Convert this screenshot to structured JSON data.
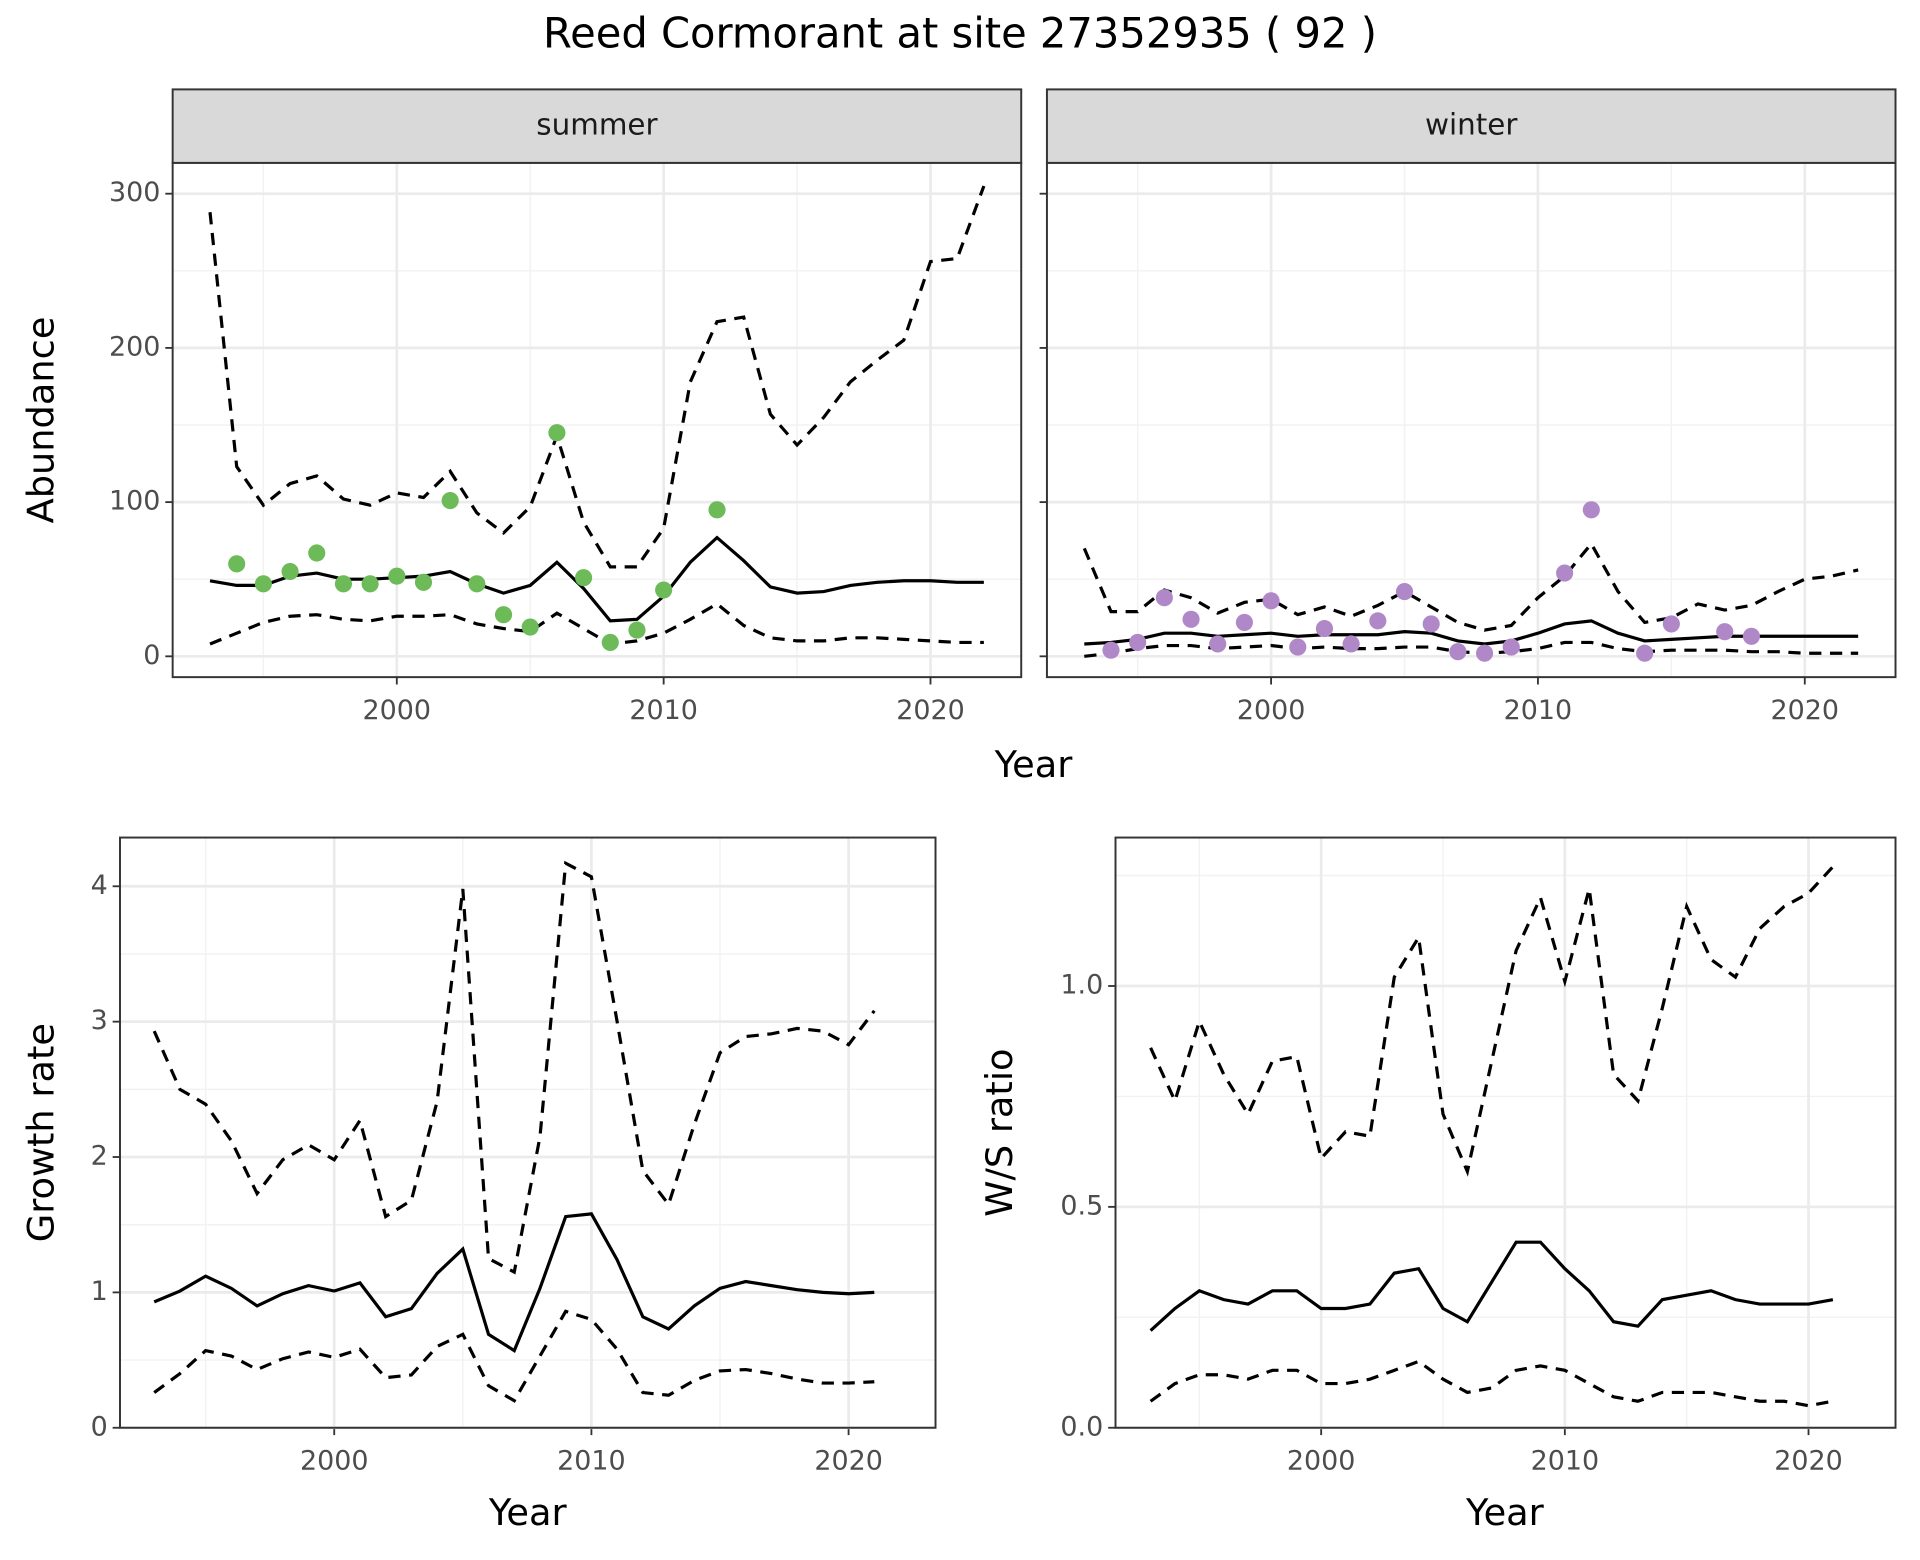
{
  "title": "Reed Cormorant at site 27352935 ( 92 )",
  "chart_data": [
    {
      "type": "line",
      "panel": "summer",
      "ylabel": "Abundance",
      "xlabel": "Year",
      "x": [
        1993,
        1994,
        1995,
        1996,
        1997,
        1998,
        1999,
        2000,
        2001,
        2002,
        2003,
        2004,
        2005,
        2006,
        2007,
        2008,
        2009,
        2010,
        2011,
        2012,
        2013,
        2014,
        2015,
        2016,
        2017,
        2018,
        2019,
        2020,
        2021,
        2022
      ],
      "series": [
        {
          "style": "dashed",
          "color": "#000000",
          "values": [
            288,
            123,
            98,
            112,
            117,
            102,
            98,
            106,
            103,
            120,
            93,
            80,
            97,
            143,
            87,
            58,
            58,
            83,
            178,
            217,
            220,
            157,
            137,
            155,
            178,
            192,
            205,
            256,
            258,
            305
          ]
        },
        {
          "style": "solid",
          "color": "#000000",
          "values": [
            49,
            46,
            46,
            52,
            54,
            50,
            50,
            51,
            52,
            55,
            47,
            41,
            46,
            61,
            44,
            23,
            24,
            39,
            61,
            77,
            62,
            45,
            41,
            42,
            46,
            48,
            49,
            49,
            48,
            48
          ]
        },
        {
          "style": "dashed",
          "color": "#000000",
          "values": [
            8,
            15,
            22,
            26,
            27,
            24,
            23,
            26,
            26,
            27,
            21,
            18,
            16,
            28,
            18,
            8,
            10,
            15,
            24,
            34,
            20,
            12,
            10,
            10,
            12,
            12,
            11,
            10,
            9,
            9
          ]
        },
        {
          "style": "points",
          "color": "#6cbb58",
          "x": [
            1994,
            1995,
            1996,
            1997,
            1998,
            1999,
            2000,
            2001,
            2002,
            2003,
            2004,
            2005,
            2006,
            2007,
            2008,
            2009,
            2010,
            2012
          ],
          "values": [
            60,
            47,
            55,
            67,
            47,
            47,
            52,
            48,
            101,
            47,
            27,
            19,
            145,
            51,
            9,
            17,
            43,
            95
          ]
        }
      ],
      "xlim": [
        1991.6,
        2023.4
      ],
      "xticks": [
        2000,
        2010,
        2020
      ],
      "xminor": [
        1995,
        2005,
        2015
      ],
      "ylim": [
        -13.5,
        320
      ],
      "yticks": [
        0,
        100,
        200,
        300
      ],
      "yminor": [
        50,
        150,
        250
      ],
      "ytick_labels": true,
      "grid": true
    },
    {
      "type": "line",
      "panel": "winter",
      "x": [
        1993,
        1994,
        1995,
        1996,
        1997,
        1998,
        1999,
        2000,
        2001,
        2002,
        2003,
        2004,
        2005,
        2006,
        2007,
        2008,
        2009,
        2010,
        2011,
        2012,
        2013,
        2014,
        2015,
        2016,
        2017,
        2018,
        2019,
        2020,
        2021,
        2022
      ],
      "series": [
        {
          "style": "dashed",
          "color": "#000000",
          "values": [
            70,
            29,
            29,
            43,
            38,
            28,
            35,
            37,
            27,
            32,
            26,
            33,
            42,
            32,
            22,
            17,
            20,
            38,
            52,
            73,
            42,
            22,
            25,
            34,
            30,
            33,
            42,
            50,
            52,
            56
          ]
        },
        {
          "style": "solid",
          "color": "#000000",
          "values": [
            8,
            9,
            11,
            15,
            15,
            13,
            14,
            15,
            13,
            14,
            14,
            14,
            16,
            15,
            10,
            8,
            10,
            15,
            21,
            23,
            15,
            10,
            11,
            12,
            13,
            13,
            13,
            13,
            13,
            13
          ]
        },
        {
          "style": "dashed",
          "color": "#000000",
          "values": [
            0,
            2,
            5,
            7,
            7,
            5,
            6,
            7,
            5,
            6,
            5,
            5,
            6,
            6,
            3,
            2,
            3,
            5,
            9,
            9,
            5,
            3,
            4,
            4,
            4,
            3,
            3,
            2,
            2,
            2
          ]
        },
        {
          "style": "points",
          "color": "#b088c8",
          "x": [
            1994,
            1995,
            1996,
            1997,
            1998,
            1999,
            2000,
            2001,
            2002,
            2003,
            2004,
            2005,
            2006,
            2007,
            2008,
            2009,
            2011,
            2012,
            2014,
            2015,
            2017,
            2018
          ],
          "values": [
            4,
            9,
            38,
            24,
            8,
            22,
            36,
            6,
            18,
            8,
            23,
            42,
            21,
            3,
            2,
            6,
            54,
            95,
            2,
            21,
            16,
            13
          ]
        }
      ],
      "xlim": [
        1991.6,
        2023.4
      ],
      "xticks": [
        2000,
        2010,
        2020
      ],
      "xminor": [
        1995,
        2005,
        2015
      ],
      "ylim": [
        -13.5,
        320
      ],
      "yticks": [
        0,
        100,
        200,
        300
      ],
      "yminor": [
        50,
        150,
        250
      ],
      "ytick_labels": false,
      "grid": true
    },
    {
      "type": "line",
      "ylabel": "Growth rate",
      "xlabel": "Year",
      "x": [
        1993,
        1994,
        1995,
        1996,
        1997,
        1998,
        1999,
        2000,
        2001,
        2002,
        2003,
        2004,
        2005,
        2006,
        2007,
        2008,
        2009,
        2010,
        2011,
        2012,
        2013,
        2014,
        2015,
        2016,
        2017,
        2018,
        2019,
        2020,
        2021
      ],
      "series": [
        {
          "style": "dashed",
          "color": "#000000",
          "values": [
            2.93,
            2.5,
            2.39,
            2.12,
            1.73,
            1.98,
            2.09,
            1.98,
            2.27,
            1.56,
            1.68,
            2.41,
            3.98,
            1.25,
            1.15,
            2.15,
            4.17,
            4.07,
            3.0,
            1.9,
            1.65,
            2.24,
            2.77,
            2.89,
            2.91,
            2.95,
            2.93,
            2.83,
            3.08
          ]
        },
        {
          "style": "solid",
          "color": "#000000",
          "values": [
            0.93,
            1.01,
            1.12,
            1.03,
            0.9,
            0.99,
            1.05,
            1.01,
            1.07,
            0.82,
            0.88,
            1.14,
            1.32,
            0.69,
            0.57,
            1.03,
            1.56,
            1.58,
            1.24,
            0.82,
            0.73,
            0.9,
            1.03,
            1.08,
            1.05,
            1.02,
            1.0,
            0.99,
            1.0
          ]
        },
        {
          "style": "dashed",
          "color": "#000000",
          "values": [
            0.26,
            0.4,
            0.57,
            0.53,
            0.43,
            0.51,
            0.56,
            0.52,
            0.58,
            0.37,
            0.39,
            0.6,
            0.69,
            0.31,
            0.2,
            0.53,
            0.86,
            0.8,
            0.58,
            0.26,
            0.24,
            0.35,
            0.42,
            0.43,
            0.4,
            0.36,
            0.33,
            0.33,
            0.34
          ]
        }
      ],
      "xlim": [
        1991.67,
        2023.38
      ],
      "xticks": [
        2000,
        2010,
        2020
      ],
      "xminor": [
        1995,
        2005,
        2015
      ],
      "ylim": [
        0,
        4.36
      ],
      "yticks": [
        0,
        1,
        2,
        3,
        4
      ],
      "yminor": [
        0.5,
        1.5,
        2.5,
        3.5
      ],
      "ytick_labels": true,
      "grid": true
    },
    {
      "type": "line",
      "ylabel": "W/S ratio",
      "xlabel": "Year",
      "x": [
        1993,
        1994,
        1995,
        1996,
        1997,
        1998,
        1999,
        2000,
        2001,
        2002,
        2003,
        2004,
        2005,
        2006,
        2007,
        2008,
        2009,
        2010,
        2011,
        2012,
        2013,
        2014,
        2015,
        2016,
        2017,
        2018,
        2019,
        2020,
        2021
      ],
      "series": [
        {
          "style": "dashed",
          "color": "#000000",
          "values": [
            0.86,
            0.74,
            0.92,
            0.8,
            0.71,
            0.83,
            0.84,
            0.61,
            0.67,
            0.66,
            1.02,
            1.11,
            0.71,
            0.58,
            0.83,
            1.08,
            1.2,
            1.01,
            1.22,
            0.8,
            0.74,
            0.95,
            1.18,
            1.06,
            1.02,
            1.13,
            1.18,
            1.21,
            1.27
          ]
        },
        {
          "style": "solid",
          "color": "#000000",
          "values": [
            0.22,
            0.27,
            0.31,
            0.29,
            0.28,
            0.31,
            0.31,
            0.27,
            0.27,
            0.28,
            0.35,
            0.36,
            0.27,
            0.24,
            0.33,
            0.42,
            0.42,
            0.36,
            0.31,
            0.24,
            0.23,
            0.29,
            0.3,
            0.31,
            0.29,
            0.28,
            0.28,
            0.28,
            0.29
          ]
        },
        {
          "style": "dashed",
          "color": "#000000",
          "values": [
            0.06,
            0.1,
            0.12,
            0.12,
            0.11,
            0.13,
            0.13,
            0.1,
            0.1,
            0.11,
            0.13,
            0.15,
            0.11,
            0.08,
            0.09,
            0.13,
            0.14,
            0.13,
            0.1,
            0.07,
            0.06,
            0.08,
            0.08,
            0.08,
            0.07,
            0.06,
            0.06,
            0.05,
            0.06
          ]
        }
      ],
      "xlim": [
        1991.56,
        2023.57
      ],
      "xticks": [
        2000,
        2010,
        2020
      ],
      "xminor": [
        1995,
        2005,
        2015
      ],
      "ylim": [
        0,
        1.336
      ],
      "yticks": [
        {
          "value": 0,
          "label": "0.0"
        },
        {
          "value": 0.5,
          "label": "0.5"
        },
        {
          "value": 1,
          "label": "1.0"
        }
      ],
      "yminor": [
        0.25,
        0.75,
        1.25
      ],
      "ytick_labels": true,
      "grid": true
    }
  ]
}
